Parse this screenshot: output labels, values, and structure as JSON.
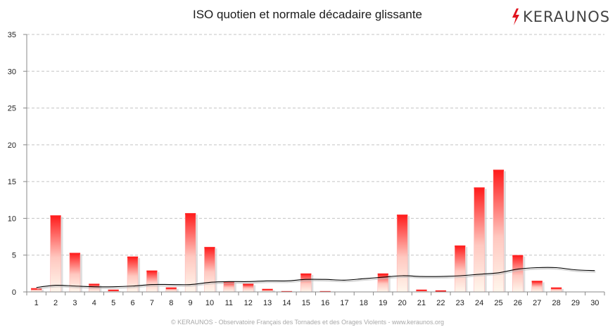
{
  "title": "ISO quotien et normale décadaire glissante",
  "logo": {
    "text": "KERAUNOS",
    "icon": "lightning-bolt-icon",
    "bolt_color": "#e0141e"
  },
  "footer": "© KERAUNOS - Observatoire Français des Tornades et des Orages Violents - www.keraunos.org",
  "chart_data": {
    "type": "bar",
    "title": "ISO quotien et normale décadaire glissante",
    "xlabel": "",
    "ylabel": "",
    "categories": [
      "1",
      "2",
      "3",
      "4",
      "5",
      "6",
      "7",
      "8",
      "9",
      "10",
      "11",
      "12",
      "13",
      "14",
      "15",
      "16",
      "17",
      "18",
      "19",
      "20",
      "21",
      "22",
      "23",
      "24",
      "25",
      "26",
      "27",
      "28",
      "29",
      "30"
    ],
    "series": [
      {
        "type": "bar",
        "values": [
          0.5,
          10.4,
          5.3,
          1.1,
          0.3,
          4.8,
          2.9,
          0.6,
          10.7,
          6.1,
          1.4,
          1.1,
          0.4,
          0.1,
          2.5,
          0.1,
          0,
          0,
          2.5,
          10.5,
          0.3,
          0.2,
          6.3,
          14.2,
          16.6,
          5.0,
          1.5,
          0.6,
          0,
          0
        ],
        "color": "#ff2020"
      },
      {
        "type": "line",
        "values": [
          0.6,
          0.9,
          0.8,
          0.7,
          0.7,
          0.8,
          1.0,
          1.0,
          1.0,
          1.3,
          1.4,
          1.4,
          1.5,
          1.5,
          1.7,
          1.7,
          1.6,
          1.8,
          2.0,
          2.2,
          2.1,
          2.1,
          2.2,
          2.4,
          2.6,
          3.1,
          3.3,
          3.3,
          3.0,
          2.9
        ],
        "color": "#000000"
      }
    ],
    "ylim": [
      0,
      35
    ],
    "yticks": [
      0,
      5,
      10,
      15,
      20,
      25,
      30,
      35
    ],
    "grid": true
  }
}
